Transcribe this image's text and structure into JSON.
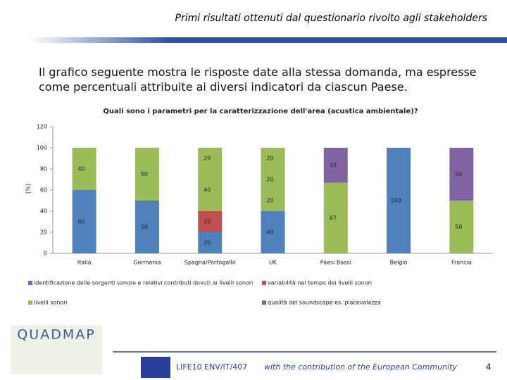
{
  "header": "Primi risultati ottenuti dal questionario rivolto agli stakeholders",
  "body": "Il grafico seguente mostra le risposte date alla stessa domanda, ma espresse come percentuali attribuite ai diversi indicatori da ciascun Paese.",
  "logo": "QUADMAP",
  "footer": {
    "code": "LIFE10 ENV/IT/407",
    "text": "with the contribution of the European Community",
    "page": "4"
  },
  "chart_data": {
    "type": "stacked_bar",
    "title": "Quali sono i parametri per la caratterizzazione dell'area (acustica ambientale)?",
    "y_label": "[%]",
    "categories": [
      "Italia",
      "Germania",
      "Spagna/Portogallo",
      "UK",
      "Paesi Bassi",
      "Belgio",
      "Francia"
    ],
    "ylim": [
      0,
      120
    ],
    "yticks": [
      0,
      20,
      40,
      60,
      80,
      100,
      120
    ],
    "series": [
      {
        "name": "identificazione delle sorgenti sonore e relativi contributi dovuti ai livelli sonori",
        "color": "#4f81bd",
        "values": [
          60,
          50,
          20,
          40,
          null,
          100,
          null
        ]
      },
      {
        "name": "variabilità nel tempo dei livelli sonori",
        "color": "#c0504d",
        "values": [
          null,
          null,
          20,
          null,
          null,
          null,
          null
        ]
      },
      {
        "name": "livelli sonori",
        "color": "#9bbb59",
        "values": [
          40,
          50,
          40,
          20,
          67,
          null,
          50
        ]
      },
      {
        "name": "qualità del soundscape es. piacevolezza",
        "color": "#8064a2",
        "values": [
          null,
          null,
          null,
          null,
          33,
          null,
          50
        ]
      },
      {
        "name": null,
        "color": "#9bbb59",
        "values": [
          null,
          null,
          20,
          20,
          null,
          null,
          null
        ]
      },
      {
        "name": null,
        "color": "#9bbb59",
        "values": [
          null,
          null,
          null,
          20,
          null,
          null,
          null
        ]
      }
    ]
  }
}
